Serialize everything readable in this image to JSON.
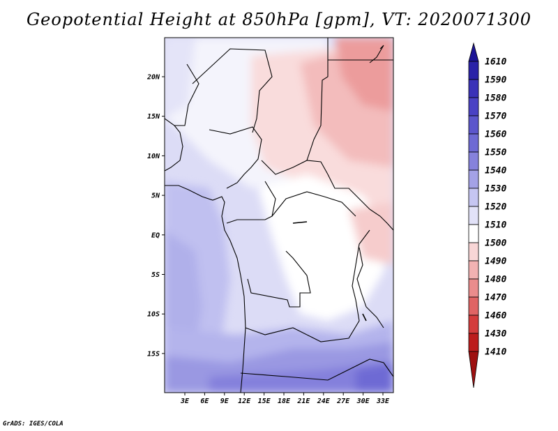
{
  "title": "Geopotential Height at 850hPa [gpm], VT: 2020071300",
  "credit": "GrADS: IGES/COLA",
  "map": {
    "lat_labels": [
      "20N",
      "15N",
      "10N",
      "5N",
      "EQ",
      "5S",
      "10S",
      "15S"
    ],
    "lon_labels": [
      "3E",
      "6E",
      "9E",
      "12E",
      "15E",
      "18E",
      "21E",
      "24E",
      "27E",
      "30E",
      "33E"
    ]
  },
  "colorbar": {
    "levels": [
      "1610",
      "1590",
      "1580",
      "1570",
      "1560",
      "1550",
      "1540",
      "1530",
      "1520",
      "1510",
      "1500",
      "1490",
      "1480",
      "1470",
      "1460",
      "1430",
      "1410"
    ],
    "colors": [
      "#1c1496",
      "#2a22a8",
      "#3a32b8",
      "#4a42c4",
      "#5c56cc",
      "#6e6ad4",
      "#8682dc",
      "#a4a2e6",
      "#c6c6f2",
      "#e2e2f8",
      "#ffffff",
      "#f8d6d6",
      "#f2b2b2",
      "#ea8c8c",
      "#e06464",
      "#d43c3c",
      "#bc1c1c",
      "#9e1010"
    ]
  }
}
